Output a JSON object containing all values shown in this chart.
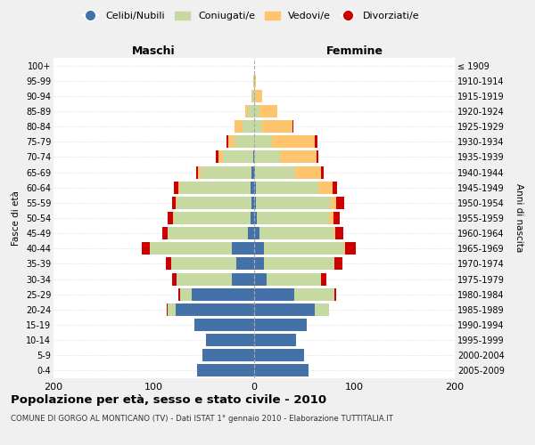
{
  "age_groups": [
    "100+",
    "95-99",
    "90-94",
    "85-89",
    "80-84",
    "75-79",
    "70-74",
    "65-69",
    "60-64",
    "55-59",
    "50-54",
    "45-49",
    "40-44",
    "35-39",
    "30-34",
    "25-29",
    "20-24",
    "15-19",
    "10-14",
    "5-9",
    "0-4"
  ],
  "birth_years": [
    "≤ 1909",
    "1910-1914",
    "1915-1919",
    "1920-1924",
    "1925-1929",
    "1930-1934",
    "1935-1939",
    "1940-1944",
    "1945-1949",
    "1950-1954",
    "1955-1959",
    "1960-1964",
    "1965-1969",
    "1970-1974",
    "1975-1979",
    "1980-1984",
    "1985-1989",
    "1990-1994",
    "1995-1999",
    "2000-2004",
    "2005-2009"
  ],
  "male": {
    "celibi": [
      0,
      0,
      0,
      0,
      0,
      0,
      1,
      3,
      4,
      3,
      4,
      6,
      22,
      18,
      22,
      62,
      78,
      60,
      48,
      52,
      57
    ],
    "coniugati": [
      0,
      1,
      2,
      6,
      12,
      20,
      30,
      50,
      70,
      74,
      76,
      80,
      82,
      65,
      55,
      12,
      8,
      0,
      0,
      0,
      0
    ],
    "vedovi": [
      0,
      0,
      1,
      3,
      8,
      6,
      5,
      3,
      2,
      1,
      1,
      0,
      0,
      0,
      0,
      0,
      0,
      0,
      0,
      0,
      0
    ],
    "divorziati": [
      0,
      0,
      0,
      0,
      0,
      2,
      2,
      2,
      4,
      4,
      5,
      6,
      8,
      5,
      5,
      2,
      1,
      0,
      0,
      0,
      0
    ]
  },
  "female": {
    "nubili": [
      0,
      0,
      0,
      0,
      0,
      0,
      0,
      1,
      2,
      2,
      3,
      5,
      10,
      10,
      12,
      40,
      60,
      52,
      42,
      50,
      54
    ],
    "coniugate": [
      0,
      0,
      2,
      5,
      8,
      18,
      26,
      40,
      62,
      74,
      72,
      74,
      80,
      70,
      55,
      40,
      15,
      0,
      0,
      0,
      0
    ],
    "vedove": [
      0,
      2,
      6,
      18,
      30,
      42,
      36,
      26,
      14,
      6,
      4,
      2,
      1,
      0,
      0,
      0,
      0,
      0,
      0,
      0,
      0
    ],
    "divorziate": [
      0,
      0,
      0,
      0,
      1,
      3,
      2,
      2,
      5,
      8,
      6,
      8,
      10,
      8,
      5,
      2,
      0,
      0,
      0,
      0,
      0
    ]
  },
  "colors": {
    "celibi": "#4472a8",
    "coniugati": "#c5d9a0",
    "vedovi": "#ffc56e",
    "divorziati": "#cc0000"
  },
  "xlim": 200,
  "title": "Popolazione per età, sesso e stato civile - 2010",
  "subtitle": "COMUNE DI GORGO AL MONTICANO (TV) - Dati ISTAT 1° gennaio 2010 - Elaborazione TUTTITALIA.IT",
  "ylabel_left": "Fasce di età",
  "ylabel_right": "Anni di nascita",
  "xlabel_male": "Maschi",
  "xlabel_female": "Femmine",
  "bg_color": "#f0f0f0",
  "plot_bg_color": "#ffffff"
}
